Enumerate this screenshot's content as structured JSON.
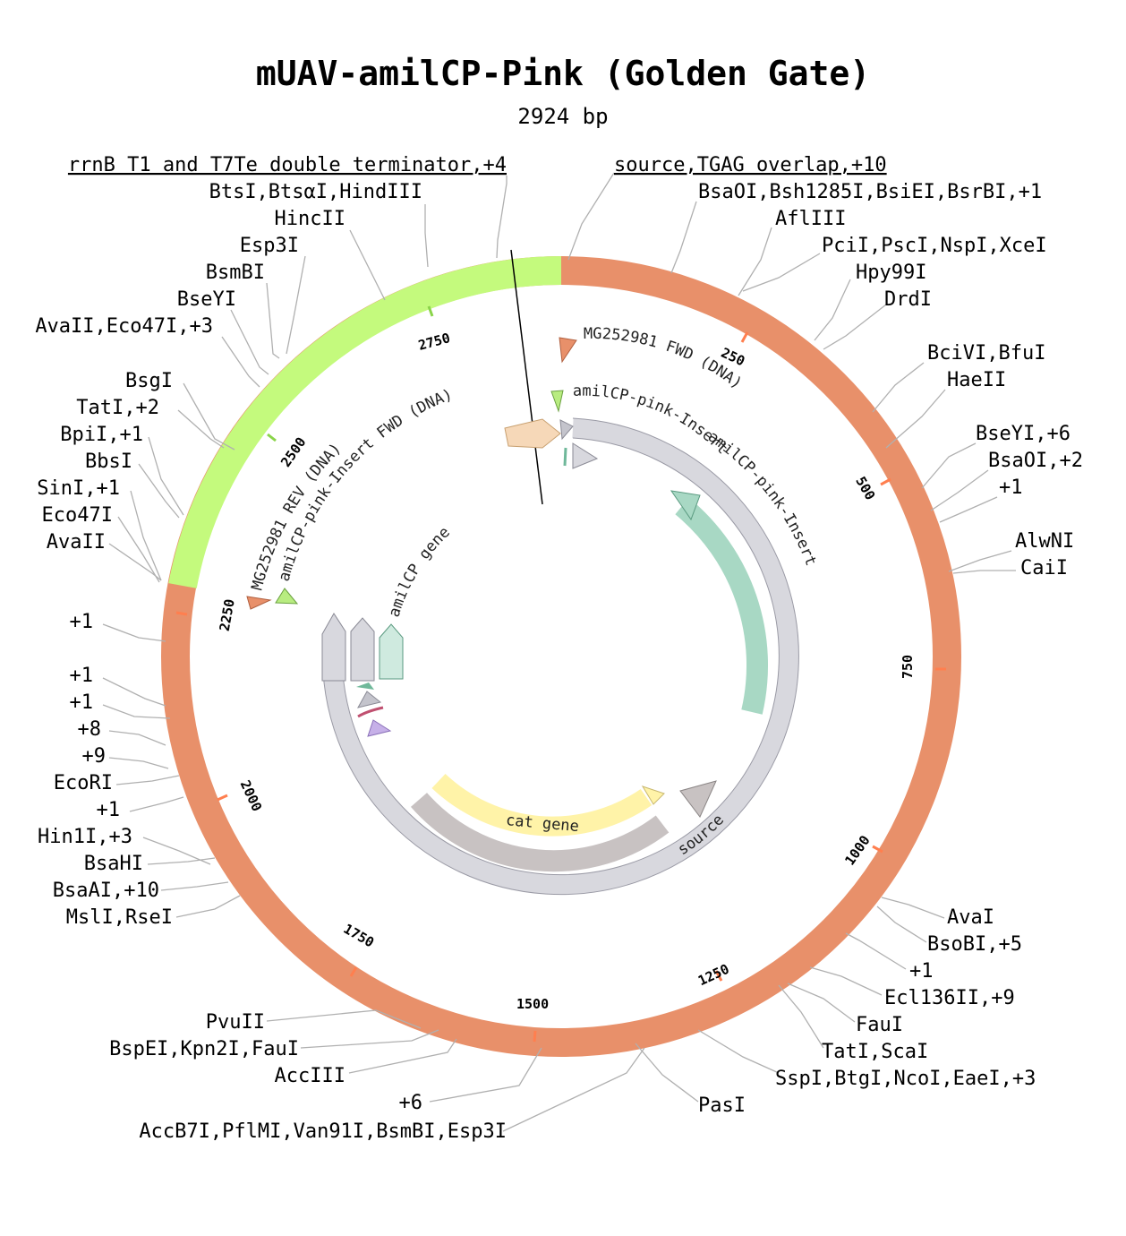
{
  "title": "mUAV-amilCP-Pink (Golden Gate)",
  "subtitle": "2924 bp",
  "colors": {
    "backbone": "#e8906a",
    "insert": "#c4fa7d",
    "source_gray": "#d8d8de",
    "amilcp": "#a8d8c4",
    "cat": "#fff3a8",
    "cat_dark": "#c8c2c2",
    "primer_orange": "#e8906a",
    "primer_green": "#a8e070"
  },
  "scale_ticks": [
    "250",
    "500",
    "750",
    "1000",
    "1250",
    "1500",
    "1750",
    "2000",
    "2250",
    "2500",
    "2750"
  ],
  "features": {
    "amilcp_gene": "amilCP gene",
    "cat_gene": "cat gene",
    "source": "source",
    "primer_mg_fwd": "MG252981 FWD (DNA)",
    "primer_amil_fwd_right": "amilCP-pink-Insert FWD (DNA)",
    "primer_amil_rev_right": "amilCP-pink-Insert REV (DNA)",
    "primer_mg_rev": "MG252981 REV (DNA)",
    "primer_amil_fwd_left": "amilCP-pink-Insert FWD (DNA)"
  },
  "labels_left": [
    "rrnB T1 and T7Te double terminator,+4",
    "BtsI,BtsαI,HindIII",
    "HincII",
    "Esp3I",
    "BsmBI",
    "BseYI",
    "AvaII,Eco47I,+3",
    "BsgI",
    "TatI,+2",
    "BpiI,+1",
    "BbsI",
    "SinI,+1",
    "Eco47I",
    "AvaII",
    "+1",
    "+1",
    "+1",
    "+8",
    "+9",
    "EcoRI",
    "+1",
    "Hin1I,+3",
    "BsaHI",
    "BsaAI,+10",
    "MslI,RseI",
    "PvuII",
    "BspEI,Kpn2I,FauI",
    "AccIII",
    "+6",
    "AccB7I,PflMI,Van91I,BsmBI,Esp3I"
  ],
  "labels_right": [
    "source,TGAG overlap,+10",
    "BsaOI,Bsh1285I,BsiEI,BsrBI,+1",
    "AflIII",
    "PciI,PscI,NspI,XceI",
    "Hpy99I",
    "DrdI",
    "BciVI,BfuI",
    "HaeII",
    "BseYI,+6",
    "BsaOI,+2",
    "+1",
    "AlwNI",
    "CaiI",
    "AvaI",
    "BsoBI,+5",
    "+1",
    "Ecl136II,+9",
    "FauI",
    "TatI,ScaI",
    "SspI,BtgI,NcoI,EaeI,+3",
    "PasI"
  ]
}
